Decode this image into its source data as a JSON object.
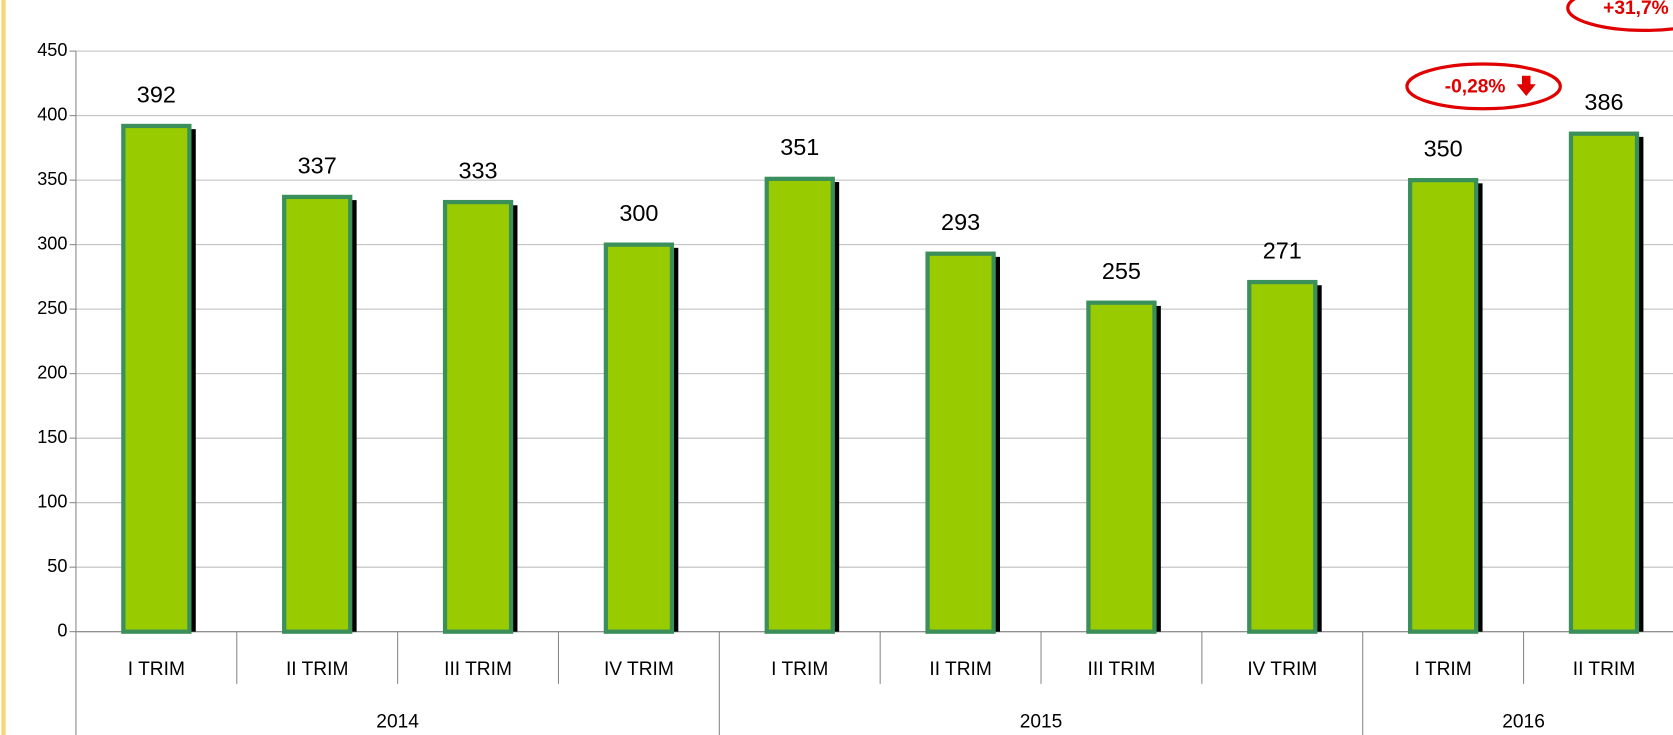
{
  "chart_data": {
    "type": "bar",
    "category_groups": [
      {
        "label": "2014",
        "categories": [
          "I TRIM",
          "II TRIM",
          "III TRIM",
          "IV TRIM"
        ]
      },
      {
        "label": "2015",
        "categories": [
          "I TRIM",
          "II TRIM",
          "III TRIM",
          "IV TRIM"
        ]
      },
      {
        "label": "2016",
        "categories": [
          "I TRIM",
          "II TRIM"
        ]
      }
    ],
    "values": [
      392,
      337,
      333,
      300,
      351,
      293,
      255,
      271,
      350,
      386
    ],
    "color": "#99cc00",
    "border_color": "#3a8f5a",
    "ylim": [
      0,
      450
    ],
    "yticks": [
      0,
      50,
      100,
      150,
      200,
      250,
      300,
      350,
      400,
      450
    ],
    "grid": true,
    "annotations": [
      "-0,28%",
      "+31,7%"
    ],
    "annotation_color": "#e00000"
  }
}
